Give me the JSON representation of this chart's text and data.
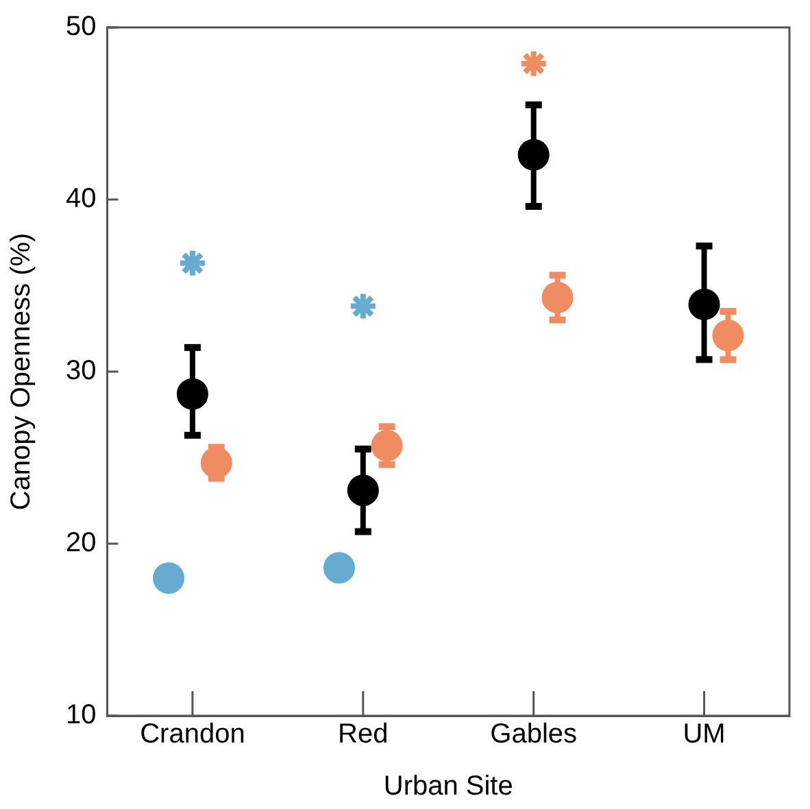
{
  "chart_data": {
    "type": "scatter",
    "xlabel": "Urban Site",
    "ylabel": "Canopy Openness (%)",
    "categories": [
      "Crandon",
      "Red",
      "Gables",
      "UM"
    ],
    "ylim": [
      10,
      50
    ],
    "yticks": [
      10,
      20,
      30,
      40,
      50
    ],
    "marker": "circle",
    "grid": false,
    "legend": false,
    "series": [
      {
        "color": "#67abd1",
        "values": [
          18.0,
          18.6,
          null,
          null
        ]
      },
      {
        "color": "#000000",
        "values": [
          28.7,
          23.1,
          42.6,
          33.9
        ],
        "errors": [
          [
            26.3,
            31.4
          ],
          [
            20.7,
            25.5
          ],
          [
            39.6,
            45.5
          ],
          [
            30.7,
            37.3
          ]
        ]
      },
      {
        "color": "#f08c62",
        "values": [
          24.7,
          25.7,
          34.3,
          32.1
        ],
        "errors": [
          [
            23.8,
            25.6
          ],
          [
            24.6,
            26.8
          ],
          [
            33.0,
            35.6
          ],
          [
            30.7,
            33.5
          ]
        ]
      },
      {
        "color": "#67abd1",
        "marker": "cross",
        "values": [
          36.3,
          33.8,
          null,
          null
        ]
      },
      {
        "color": "#f08c62",
        "marker": "cross",
        "values": [
          null,
          null,
          47.9,
          null
        ]
      }
    ]
  }
}
